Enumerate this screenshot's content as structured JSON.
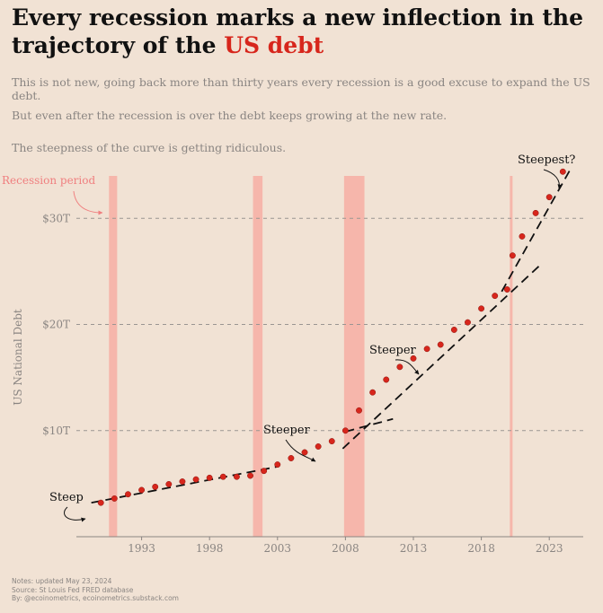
{
  "header": {
    "title_pre": "Every recession marks a new inflection in the trajectory of the ",
    "title_highlight": "US debt",
    "subtitles": [
      "This is not new, going back more than thirty years every recession is a good excuse to expand the US debt.",
      "But even after the recession is over the debt keeps growing at the new rate.",
      "The steepness of the curve is getting ridiculous."
    ]
  },
  "footer": {
    "notes": "Notes: updated May 23, 2024",
    "source": "Source: St Louis Fed FRED database",
    "by": "By: @ecoinometrics, ecoinometrics.substack.com"
  },
  "colors": {
    "accent": "#d7261c",
    "recession_band": "#f6b6ab",
    "recession_label": "#f07f7f",
    "background": "#f1e2d4",
    "muted_text": "#8a8582",
    "grid": "#9a9592"
  },
  "chart_data": {
    "type": "scatter",
    "ylabel": "US National Debt",
    "xlim": [
      1988.2,
      2025.5
    ],
    "ylim": [
      0,
      34
    ],
    "x_ticks": [
      1993,
      1998,
      2003,
      2008,
      2013,
      2018,
      2023
    ],
    "x_tick_labels": [
      "1993",
      "1998",
      "2003",
      "2008",
      "2013",
      "2018",
      "2023"
    ],
    "y_ticks": [
      10,
      20,
      30
    ],
    "y_tick_labels": [
      "$10T",
      "$20T",
      "$30T"
    ],
    "grid": "horizontal dashed",
    "recession_label": "Recession period",
    "recessions": [
      {
        "start": 1990.6,
        "end": 1991.2
      },
      {
        "start": 2001.2,
        "end": 2001.9
      },
      {
        "start": 2007.9,
        "end": 2009.4
      },
      {
        "start": 2020.1,
        "end": 2020.3
      }
    ],
    "series": [
      {
        "values": [
          {
            "x": 1990.0,
            "y": 3.2
          },
          {
            "x": 1991.0,
            "y": 3.6
          },
          {
            "x": 1992.0,
            "y": 4.0
          },
          {
            "x": 1993.0,
            "y": 4.4
          },
          {
            "x": 1994.0,
            "y": 4.7
          },
          {
            "x": 1995.0,
            "y": 4.95
          },
          {
            "x": 1996.0,
            "y": 5.2
          },
          {
            "x": 1997.0,
            "y": 5.4
          },
          {
            "x": 1998.0,
            "y": 5.55
          },
          {
            "x": 1999.0,
            "y": 5.65
          },
          {
            "x": 2000.0,
            "y": 5.65
          },
          {
            "x": 2001.0,
            "y": 5.75
          },
          {
            "x": 2002.0,
            "y": 6.2
          },
          {
            "x": 2003.0,
            "y": 6.8
          },
          {
            "x": 2004.0,
            "y": 7.4
          },
          {
            "x": 2005.0,
            "y": 7.95
          },
          {
            "x": 2006.0,
            "y": 8.5
          },
          {
            "x": 2007.0,
            "y": 9.0
          },
          {
            "x": 2008.0,
            "y": 10.0
          },
          {
            "x": 2009.0,
            "y": 11.9
          },
          {
            "x": 2010.0,
            "y": 13.6
          },
          {
            "x": 2011.0,
            "y": 14.8
          },
          {
            "x": 2012.0,
            "y": 16.0
          },
          {
            "x": 2013.0,
            "y": 16.8
          },
          {
            "x": 2014.0,
            "y": 17.7
          },
          {
            "x": 2015.0,
            "y": 18.1
          },
          {
            "x": 2016.0,
            "y": 19.5
          },
          {
            "x": 2017.0,
            "y": 20.2
          },
          {
            "x": 2018.0,
            "y": 21.5
          },
          {
            "x": 2019.0,
            "y": 22.7
          },
          {
            "x": 2019.9,
            "y": 23.3
          },
          {
            "x": 2020.3,
            "y": 26.5
          },
          {
            "x": 2021.0,
            "y": 28.3
          },
          {
            "x": 2022.0,
            "y": 30.5
          },
          {
            "x": 2023.0,
            "y": 32.0
          },
          {
            "x": 2024.0,
            "y": 34.4
          }
        ]
      }
    ],
    "trend_lines": [
      {
        "x1": 1989.3,
        "y1": 3.2,
        "x2": 2003.0,
        "y2": 6.6
      },
      {
        "x1": 2008.0,
        "y1": 9.9,
        "x2": 2011.5,
        "y2": 11.1
      },
      {
        "x1": 2007.8,
        "y1": 8.3,
        "x2": 2022.5,
        "y2": 25.8
      },
      {
        "x1": 2019.5,
        "y1": 23.1,
        "x2": 2024.5,
        "y2": 34.5
      }
    ],
    "annotations": [
      "Steep",
      "Steeper",
      "Steeper",
      "Steepest?"
    ]
  }
}
